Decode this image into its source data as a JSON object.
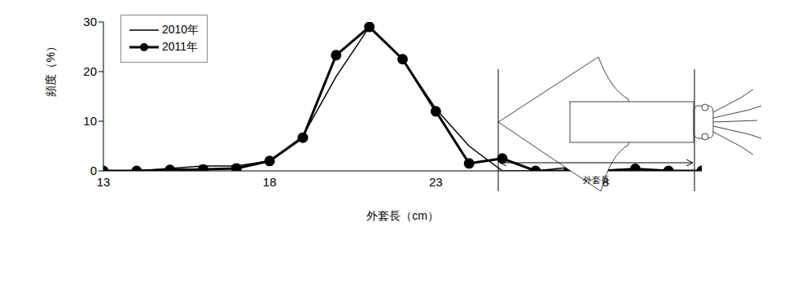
{
  "chart_data": {
    "type": "line",
    "x_label": "外套長（cm）",
    "y_label": "頻度（%）",
    "annotation": "外套長",
    "x": [
      13,
      14,
      15,
      16,
      17,
      18,
      19,
      20,
      21,
      22,
      23,
      24,
      25,
      26,
      27,
      28,
      29,
      30,
      31
    ],
    "series": [
      {
        "name": "2010年",
        "color": "#000000",
        "marker": "none",
        "line_style": "solid",
        "values": [
          0,
          0,
          0.5,
          1,
          1,
          2,
          7,
          19,
          29,
          22.5,
          12.5,
          5,
          0,
          0,
          0.7,
          0,
          0,
          0,
          0
        ]
      },
      {
        "name": "2011年",
        "color": "#000000",
        "marker": "circle",
        "line_style": "solid",
        "values": [
          0,
          0,
          0.2,
          0.3,
          0.5,
          2,
          6.7,
          23.3,
          29,
          22.5,
          12,
          1.5,
          2.5,
          0,
          0,
          0,
          0.4,
          0,
          0
        ]
      }
    ],
    "xlim": [
      13,
      31
    ],
    "xticks": [
      13,
      18,
      23,
      28
    ],
    "ylim": [
      0,
      30
    ],
    "yticks": [
      0,
      10,
      20,
      30
    ],
    "grid": false,
    "legend": "upper left"
  }
}
